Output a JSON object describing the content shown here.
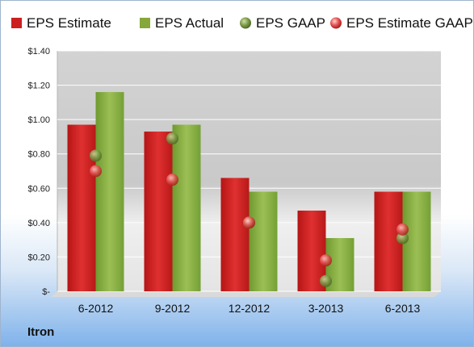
{
  "company": "Itron",
  "colors": {
    "estimate": "#cc1f1f",
    "actual": "#86a83a",
    "gaap": "#6f8f3a",
    "estimate_gaap": "#e25050"
  },
  "chart_data": {
    "type": "bar",
    "categories": [
      "6-2012",
      "9-2012",
      "12-2012",
      "3-2013",
      "6-2013"
    ],
    "series": [
      {
        "name": "EPS Estimate",
        "kind": "bar",
        "values": [
          0.97,
          0.93,
          0.66,
          0.47,
          0.58
        ]
      },
      {
        "name": "EPS Actual",
        "kind": "bar",
        "values": [
          1.16,
          0.97,
          0.58,
          0.31,
          0.58
        ]
      },
      {
        "name": "EPS GAAP",
        "kind": "point",
        "values": [
          0.79,
          0.89,
          0.4,
          0.06,
          0.31
        ]
      },
      {
        "name": "EPS Estimate GAAP",
        "kind": "point",
        "values": [
          0.7,
          0.65,
          0.4,
          0.18,
          0.36
        ]
      }
    ],
    "y_ticks": [
      "$-",
      "$0.20",
      "$0.40",
      "$0.60",
      "$0.80",
      "$1.00",
      "$1.20",
      "$1.40"
    ],
    "ylim": [
      0,
      1.4
    ],
    "grid": true,
    "legend_position": "top"
  }
}
